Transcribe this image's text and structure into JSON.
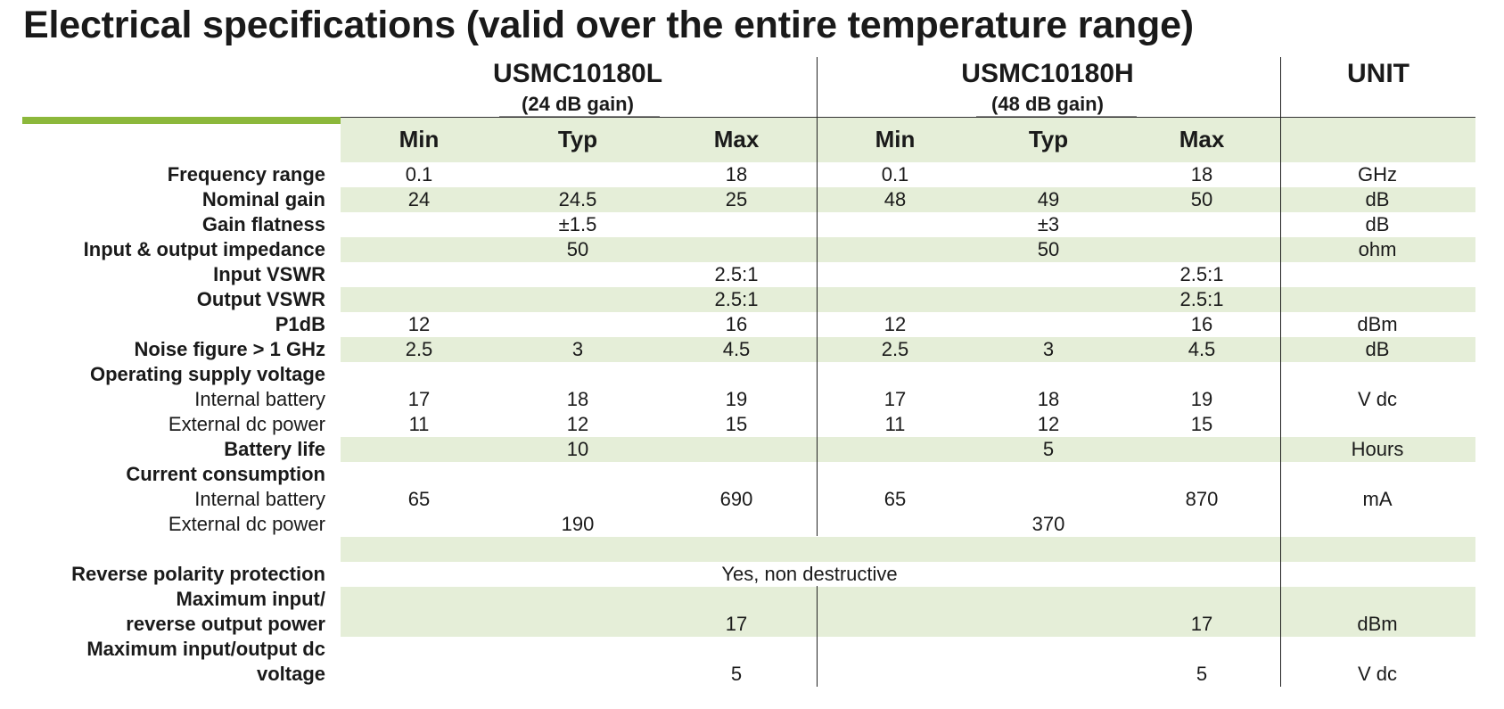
{
  "title": "Electrical specifications (valid over the entire temperature range)",
  "products": [
    {
      "name": "USMC10180L",
      "gain_note": "(24 dB gain)"
    },
    {
      "name": "USMC10180H",
      "gain_note": "(48 dB gain)"
    }
  ],
  "unit_header": "UNIT",
  "col_headers": [
    "Min",
    "Typ",
    "Max",
    "Min",
    "Typ",
    "Max"
  ],
  "rows": [
    {
      "label": "Frequency range",
      "bold": true,
      "values": [
        "0.1",
        "",
        "18",
        "0.1",
        "",
        "18"
      ],
      "unit": "GHz"
    },
    {
      "label": "Nominal gain",
      "bold": true,
      "values": [
        "24",
        "24.5",
        "25",
        "48",
        "49",
        "50"
      ],
      "unit": "dB"
    },
    {
      "label": "Gain flatness",
      "bold": true,
      "values": [
        "",
        "±1.5",
        "",
        "",
        "±3",
        ""
      ],
      "unit": "dB"
    },
    {
      "label": "Input & output impedance",
      "bold": true,
      "values": [
        "",
        "50",
        "",
        "",
        "50",
        ""
      ],
      "unit": "ohm"
    },
    {
      "label": "Input VSWR",
      "bold": true,
      "values": [
        "",
        "",
        "2.5:1",
        "",
        "",
        "2.5:1"
      ],
      "unit": ""
    },
    {
      "label": "Output VSWR",
      "bold": true,
      "values": [
        "",
        "",
        "2.5:1",
        "",
        "",
        "2.5:1"
      ],
      "unit": ""
    },
    {
      "label": "P1dB",
      "bold": true,
      "values": [
        "12",
        "",
        "16",
        "12",
        "",
        "16"
      ],
      "unit": "dBm"
    },
    {
      "label": "Noise figure > 1 GHz",
      "bold": true,
      "values": [
        "2.5",
        "3",
        "4.5",
        "2.5",
        "3",
        "4.5"
      ],
      "unit": "dB"
    },
    {
      "label": "Operating supply voltage",
      "bold": true,
      "values": [
        "",
        "",
        "",
        "",
        "",
        ""
      ],
      "unit": ""
    },
    {
      "label": "Internal battery",
      "bold": false,
      "values": [
        "17",
        "18",
        "19",
        "17",
        "18",
        "19"
      ],
      "unit": "V dc"
    },
    {
      "label": "External dc power",
      "bold": false,
      "values": [
        "11",
        "12",
        "15",
        "11",
        "12",
        "15"
      ],
      "unit": ""
    },
    {
      "label": "Battery life",
      "bold": true,
      "values": [
        "",
        "10",
        "",
        "",
        "5",
        ""
      ],
      "unit": "Hours"
    },
    {
      "label": "Current consumption",
      "bold": true,
      "values": [
        "",
        "",
        "",
        "",
        "",
        ""
      ],
      "unit": ""
    },
    {
      "label": "Internal battery",
      "bold": false,
      "values": [
        "65",
        "",
        "690",
        "65",
        "",
        "870"
      ],
      "unit": "mA"
    },
    {
      "label": "External dc power",
      "bold": false,
      "values": [
        "",
        "190",
        "",
        "",
        "370",
        ""
      ],
      "unit": ""
    },
    {
      "label": "",
      "bold": false,
      "values": [
        "",
        "",
        "",
        "",
        "",
        ""
      ],
      "unit": ""
    },
    {
      "label": "Reverse polarity protection",
      "bold": true,
      "values": [
        "",
        "",
        "",
        "",
        "",
        ""
      ],
      "unit": "",
      "span_value": "Yes, non destructive"
    },
    {
      "label": "Maximum input/",
      "bold": true,
      "values": [
        "",
        "",
        "",
        "",
        "",
        ""
      ],
      "unit": ""
    },
    {
      "label": "reverse output power",
      "bold": true,
      "values": [
        "",
        "",
        "17",
        "",
        "",
        "17"
      ],
      "unit": "dBm"
    },
    {
      "label": "Maximum input/output dc",
      "bold": true,
      "values": [
        "",
        "",
        "",
        "",
        "",
        ""
      ],
      "unit": ""
    },
    {
      "label": "voltage",
      "bold": true,
      "values": [
        "",
        "",
        "5",
        "",
        "",
        "5"
      ],
      "unit": "V dc"
    }
  ]
}
